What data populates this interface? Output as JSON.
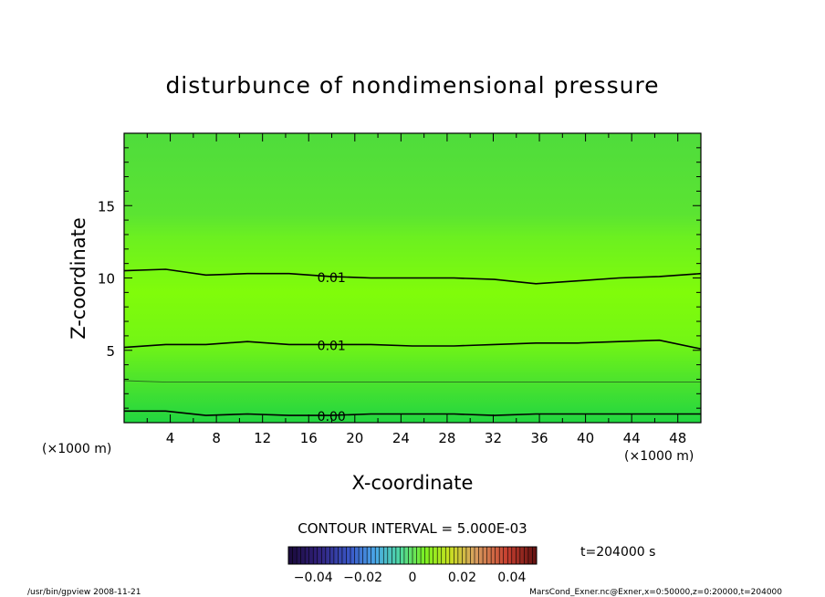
{
  "chart_data": {
    "type": "contour",
    "title": "disturbunce of nondimensional pressure",
    "xlabel": "X-coordinate",
    "ylabel": "Z-coordinate",
    "x_unit_left": "(×1000 m)",
    "x_unit_right": "(×1000 m)",
    "xlim": [
      0,
      50
    ],
    "ylim": [
      0,
      20
    ],
    "x_ticks": [
      "4",
      "8",
      "12",
      "16",
      "20",
      "24",
      "28",
      "32",
      "36",
      "40",
      "44",
      "48"
    ],
    "y_ticks": [
      "5",
      "10",
      "15"
    ],
    "contours": [
      {
        "label": "0.01",
        "z": [
          10.5,
          10.6,
          10.2,
          10.3,
          10.3,
          10.1,
          10.0,
          10.0,
          10.0,
          9.9,
          9.6,
          9.8,
          10.0,
          10.1,
          10.3
        ]
      },
      {
        "label": "0.01",
        "z": [
          5.2,
          5.4,
          5.4,
          5.6,
          5.4,
          5.4,
          5.4,
          5.3,
          5.3,
          5.4,
          5.5,
          5.5,
          5.6,
          5.7,
          5.1
        ]
      },
      {
        "label": "0.00",
        "z": [
          0.8,
          0.8,
          0.5,
          0.6,
          0.5,
          0.5,
          0.6,
          0.6,
          0.6,
          0.5,
          0.6,
          0.6,
          0.6,
          0.6,
          0.6
        ]
      }
    ],
    "contour_x": [
      0,
      3.6,
      7.1,
      10.7,
      14.3,
      17.9,
      21.4,
      25.0,
      28.6,
      32.1,
      35.7,
      39.3,
      42.9,
      46.4,
      50
    ],
    "thin_contour_z": [
      2.9,
      2.8,
      2.8,
      2.8,
      2.8,
      2.8,
      2.8,
      2.8,
      2.8,
      2.8,
      2.8,
      2.8,
      2.8,
      2.8,
      2.8
    ],
    "contour_interval_text": "CONTOUR INTERVAL = 5.000E-03",
    "colorbar_ticks": [
      "-0.04",
      "-0.02",
      "0",
      "0.02",
      "0.04"
    ],
    "colorbar_range": [
      -0.05,
      0.05
    ],
    "time_label": "t=204000 s",
    "footer_left": "/usr/bin/gpview   2008-11-21",
    "footer_right": "MarsCond_Exner.nc@Exner,x=0:50000,z=0:20000,t=204000",
    "colors": {
      "band_top": "#4fdc3c",
      "band_upper": "#63ee28",
      "band_mid": "#80fc0a",
      "band_low": "#6ef41a",
      "band_bottom": "#22d640"
    }
  }
}
